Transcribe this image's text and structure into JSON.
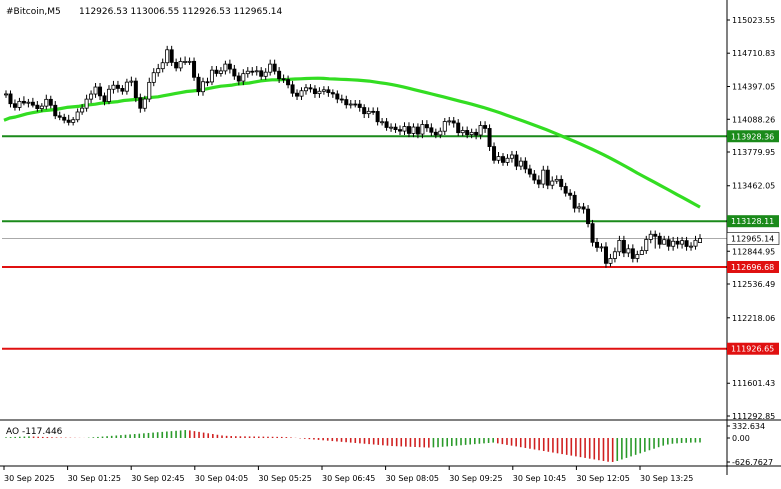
{
  "header": {
    "symbol": "#Bitcoin,M5",
    "ohlc": "112926.53 113006.55 112926.53 112965.14"
  },
  "colors": {
    "background": "#ffffff",
    "axis": "#000000",
    "candle": "#000000",
    "ma": "#33dd22",
    "support_line": "#1a8a1a",
    "resistance_line": "#e01010",
    "price_tag": "#ffffff",
    "ao_up": "#2a9a2a",
    "ao_down": "#d02020",
    "grid": "#dddddd"
  },
  "chart_data": [
    {
      "type": "candlestick",
      "title": "#Bitcoin,M5",
      "ylim": [
        111292.85,
        115060
      ],
      "yticks": [
        "115023.55",
        "114710.83",
        "114397.05",
        "114088.26",
        "113779.95",
        "113462.05",
        "112844.95",
        "112536.49",
        "112218.06",
        "111601.43",
        "111292.85"
      ],
      "xticks": [
        "30 Sep 2025",
        "30 Sep 01:25",
        "30 Sep 02:45",
        "30 Sep 04:05",
        "30 Sep 05:25",
        "30 Sep 06:45",
        "30 Sep 08:05",
        "30 Sep 09:25",
        "30 Sep 10:45",
        "30 Sep 12:05",
        "30 Sep 13:25"
      ],
      "close": [
        114327,
        114235,
        114200,
        114257,
        114241,
        114249,
        114221,
        114189,
        114212,
        114276,
        114220,
        114121,
        114107,
        114080,
        114059,
        114084,
        114157,
        114193,
        114278,
        114326,
        114392,
        114309,
        114256,
        114371,
        114409,
        114379,
        114353,
        114438,
        114448,
        114292,
        114192,
        114279,
        114436,
        114527,
        114565,
        114621,
        114743,
        114624,
        114572,
        114633,
        114633,
        114634,
        114484,
        114348,
        114442,
        114440,
        114551,
        114520,
        114544,
        114608,
        114561,
        114496,
        114448,
        114518,
        114541,
        114539,
        114545,
        114493,
        114532,
        114608,
        114541,
        114470,
        114462,
        114413,
        114334,
        114306,
        114357,
        114385,
        114374,
        114330,
        114352,
        114366,
        114340,
        114327,
        114279,
        114274,
        114225,
        114232,
        114231,
        114199,
        114141,
        114163,
        114162,
        114065,
        114065,
        114011,
        114014,
        113991,
        113977,
        114020,
        113955,
        114015,
        113949,
        114039,
        114008,
        113966,
        113941,
        113976,
        114067,
        114073,
        114053,
        113962,
        113983,
        113944,
        113965,
        113940,
        114030,
        114002,
        113831,
        113702,
        113737,
        113682,
        113721,
        113752,
        113647,
        113694,
        113620,
        113572,
        113516,
        113478,
        113609,
        113467,
        113506,
        113522,
        113455,
        113392,
        113372,
        113251,
        113263,
        113242,
        113105,
        112929,
        112881,
        112886,
        112731,
        112777,
        112840,
        112947,
        112829,
        112868,
        112777,
        112814,
        112851,
        112956,
        113005,
        112986,
        112911,
        112954,
        112892,
        112939,
        112912,
        112945,
        112890,
        112893,
        112948,
        112965
      ],
      "open": [
        114326,
        114327,
        114235,
        114200,
        114257,
        114241,
        114249,
        114221,
        114189,
        114212,
        114276,
        114220,
        114121,
        114107,
        114080,
        114059,
        114084,
        114157,
        114193,
        114278,
        114326,
        114392,
        114309,
        114256,
        114371,
        114409,
        114379,
        114353,
        114438,
        114448,
        114292,
        114192,
        114279,
        114436,
        114527,
        114565,
        114621,
        114743,
        114624,
        114572,
        114633,
        114633,
        114634,
        114484,
        114348,
        114442,
        114440,
        114551,
        114520,
        114544,
        114608,
        114561,
        114496,
        114448,
        114518,
        114541,
        114539,
        114545,
        114493,
        114532,
        114608,
        114541,
        114470,
        114462,
        114413,
        114334,
        114306,
        114357,
        114385,
        114374,
        114330,
        114352,
        114366,
        114340,
        114327,
        114279,
        114274,
        114225,
        114232,
        114231,
        114199,
        114141,
        114163,
        114162,
        114065,
        114065,
        114011,
        114014,
        113991,
        113977,
        114020,
        113955,
        114015,
        113949,
        114039,
        114008,
        113966,
        113941,
        113976,
        114067,
        114073,
        114053,
        113962,
        113983,
        113944,
        113965,
        113940,
        114030,
        114002,
        113831,
        113702,
        113737,
        113682,
        113721,
        113752,
        113647,
        113694,
        113620,
        113572,
        113516,
        113478,
        113609,
        113467,
        113506,
        113522,
        113455,
        113392,
        113372,
        113251,
        113263,
        113242,
        113105,
        112929,
        112881,
        112886,
        112731,
        112777,
        112840,
        112947,
        112829,
        112868,
        112777,
        112814,
        112851,
        112956,
        113005,
        112986,
        112911,
        112954,
        112892,
        112939,
        112912,
        112945,
        112890,
        112893,
        112927
      ],
      "high": [
        114360,
        114360,
        114275,
        114290,
        114305,
        114280,
        114290,
        114260,
        114240,
        114320,
        114310,
        114260,
        114160,
        114140,
        114130,
        114110,
        114190,
        114230,
        114320,
        114360,
        114430,
        114430,
        114340,
        114410,
        114450,
        114450,
        114410,
        114470,
        114490,
        114480,
        114330,
        114310,
        114480,
        114570,
        114610,
        114660,
        114780,
        114780,
        114660,
        114670,
        114680,
        114670,
        114670,
        114520,
        114480,
        114480,
        114590,
        114590,
        114580,
        114640,
        114650,
        114600,
        114530,
        114560,
        114580,
        114580,
        114590,
        114580,
        114570,
        114650,
        114650,
        114580,
        114510,
        114500,
        114450,
        114370,
        114390,
        114420,
        114420,
        114410,
        114390,
        114400,
        114400,
        114370,
        114360,
        114320,
        114310,
        114270,
        114270,
        114270,
        114230,
        114200,
        114200,
        114200,
        114100,
        114100,
        114050,
        114050,
        114030,
        114060,
        114060,
        114050,
        114050,
        114080,
        114080,
        114050,
        114000,
        114010,
        114100,
        114110,
        114110,
        114090,
        114020,
        114020,
        114000,
        114000,
        114070,
        114070,
        114040,
        113870,
        113780,
        113770,
        113760,
        113790,
        113790,
        113730,
        113730,
        113660,
        113610,
        113560,
        113650,
        113650,
        113550,
        113560,
        113560,
        113490,
        113430,
        113410,
        113300,
        113300,
        113280,
        113140,
        112970,
        112920,
        112930,
        112820,
        112880,
        112990,
        112990,
        112910,
        112910,
        112850,
        112890,
        112990,
        113040,
        113040,
        113020,
        112990,
        112990,
        112980,
        112980,
        112980,
        112980,
        112930,
        112990,
        113006
      ],
      "low": [
        114290,
        114200,
        114170,
        114170,
        114220,
        114200,
        114200,
        114160,
        114160,
        114180,
        114190,
        114090,
        114080,
        114050,
        114030,
        114030,
        114060,
        114130,
        114160,
        114240,
        114290,
        114270,
        114220,
        114230,
        114330,
        114340,
        114320,
        114320,
        114400,
        114250,
        114150,
        114160,
        114250,
        114400,
        114490,
        114530,
        114590,
        114590,
        114540,
        114540,
        114600,
        114600,
        114450,
        114310,
        114310,
        114400,
        114410,
        114490,
        114490,
        114510,
        114520,
        114460,
        114410,
        114410,
        114480,
        114500,
        114500,
        114460,
        114460,
        114500,
        114510,
        114430,
        114430,
        114380,
        114300,
        114270,
        114270,
        114320,
        114340,
        114290,
        114290,
        114320,
        114300,
        114290,
        114240,
        114240,
        114190,
        114190,
        114200,
        114160,
        114100,
        114100,
        114130,
        114030,
        114030,
        113980,
        113970,
        113960,
        113940,
        113940,
        113920,
        113920,
        113910,
        113910,
        113970,
        113930,
        113910,
        113910,
        113940,
        114030,
        114010,
        113930,
        113930,
        113910,
        113910,
        113900,
        113900,
        113960,
        113790,
        113670,
        113670,
        113650,
        113650,
        113680,
        113610,
        113610,
        113580,
        113540,
        113480,
        113440,
        113440,
        113430,
        113430,
        113480,
        113420,
        113360,
        113330,
        113210,
        113210,
        113200,
        113070,
        112890,
        112840,
        112840,
        112690,
        112700,
        112740,
        112800,
        112790,
        112790,
        112740,
        112740,
        112810,
        112820,
        112920,
        112870,
        112870,
        112910,
        112850,
        112850,
        112870,
        112870,
        112850,
        112850,
        112860,
        112926
      ],
      "ma": [
        114080,
        114100,
        114110,
        114125,
        114140,
        114150,
        114160,
        114170,
        114175,
        114180,
        114190,
        114200,
        114205,
        114210,
        114220,
        114225,
        114230,
        114240,
        114245,
        114250,
        114255,
        114265,
        114270,
        114275,
        114280,
        114290,
        114295,
        114300,
        114310,
        114320,
        114330,
        114340,
        114350,
        114355,
        114360,
        114370,
        114380,
        114390,
        114400,
        114405,
        114410,
        114420,
        114425,
        114430,
        114440,
        114450,
        114455,
        114460,
        114460,
        114462,
        114465,
        114468,
        114470,
        114472,
        114474,
        114475,
        114473,
        114470,
        114468,
        114465,
        114463,
        114460,
        114457,
        114453,
        114448,
        114440,
        114432,
        114424,
        114415,
        114405,
        114393,
        114380,
        114366,
        114353,
        114340,
        114326,
        114313,
        114300,
        114286,
        114272,
        114258,
        114244,
        114230,
        114215,
        114200,
        114183,
        114166,
        114148,
        114129,
        114110,
        114091,
        114072,
        114052,
        114032,
        114012,
        113992,
        113970,
        113948,
        113925,
        113902,
        113880,
        113857,
        113833,
        113808,
        113783,
        113757,
        113730,
        113702,
        113673,
        113643,
        113613,
        113582,
        113553,
        113524,
        113495,
        113466,
        113437,
        113408,
        113378,
        113349,
        113320,
        113290,
        113261
      ],
      "levels": [
        {
          "price": 113928.36,
          "label": "113928.36",
          "kind": "green"
        },
        {
          "price": 113128.11,
          "label": "113128.11",
          "kind": "green"
        },
        {
          "price": 112696.68,
          "label": "112696.68",
          "kind": "red"
        },
        {
          "price": 111926.65,
          "label": "111926.65",
          "kind": "red"
        }
      ],
      "current_price": "112965.14"
    },
    {
      "type": "bar",
      "title": "AO -117.446",
      "yticks": [
        "332.634",
        "0.00",
        "-626.7627"
      ],
      "ylim": [
        -626.7627,
        332.634
      ],
      "values": [
        20,
        25,
        30,
        35,
        40,
        45,
        40,
        35,
        30,
        25,
        20,
        15,
        12,
        10,
        8,
        6,
        4,
        2,
        10,
        20,
        30,
        40,
        50,
        60,
        70,
        80,
        90,
        100,
        110,
        120,
        130,
        140,
        150,
        160,
        170,
        180,
        190,
        200,
        210,
        220,
        210,
        190,
        170,
        150,
        130,
        110,
        90,
        70,
        60,
        55,
        50,
        48,
        46,
        44,
        42,
        40,
        38,
        36,
        34,
        32,
        30,
        25,
        15,
        5,
        -10,
        -20,
        -30,
        -40,
        -50,
        -60,
        -70,
        -80,
        -90,
        -100,
        -110,
        -120,
        -130,
        -140,
        -150,
        -160,
        -170,
        -180,
        -190,
        -200,
        -210,
        -215,
        -220,
        -225,
        -230,
        -235,
        -240,
        -245,
        -250,
        -245,
        -240,
        -230,
        -220,
        -210,
        -200,
        -190,
        -180,
        -170,
        -160,
        -150,
        -140,
        -130,
        -120,
        -140,
        -160,
        -180,
        -200,
        -220,
        -240,
        -260,
        -280,
        -300,
        -320,
        -340,
        -360,
        -380,
        -400,
        -420,
        -440,
        -460,
        -480,
        -500,
        -520,
        -540,
        -560,
        -580,
        -600,
        -620,
        -626,
        -600,
        -560,
        -520,
        -480,
        -440,
        -400,
        -360,
        -320,
        -280,
        -240,
        -200,
        -170,
        -150,
        -140,
        -130,
        -125,
        -120,
        -118,
        -117
      ]
    }
  ]
}
